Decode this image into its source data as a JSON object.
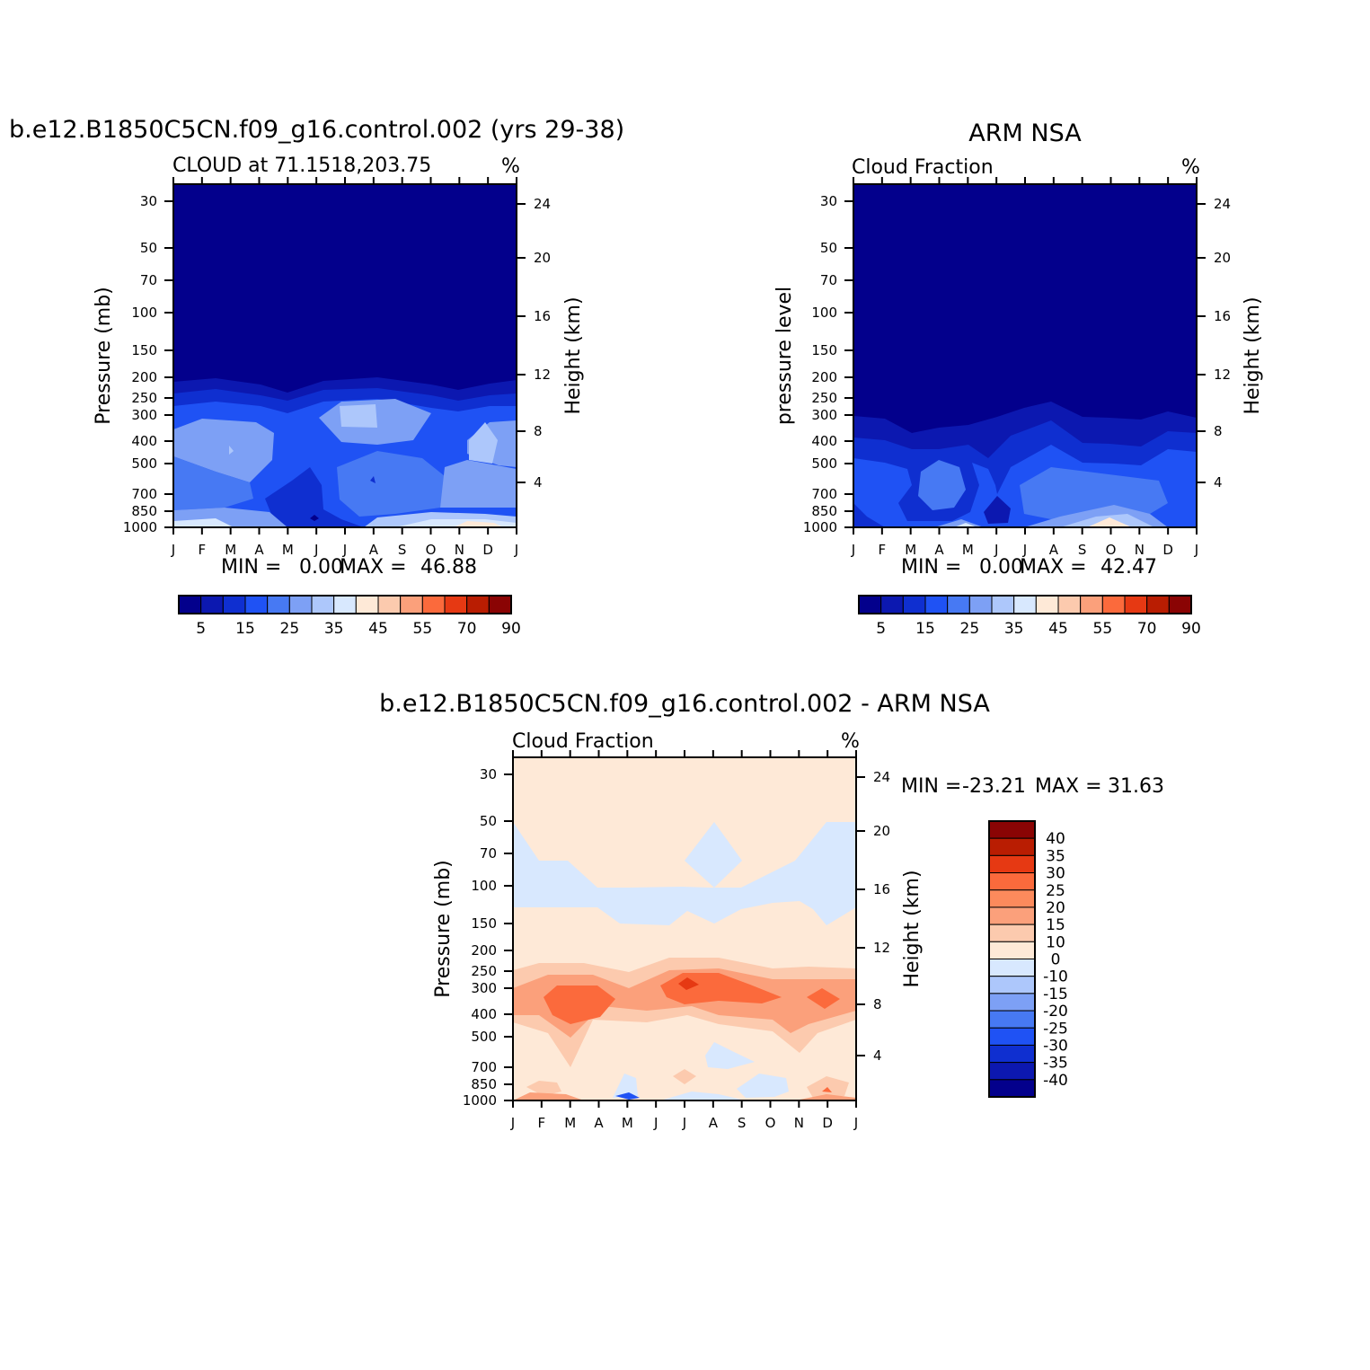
{
  "chart_data": [
    {
      "type": "heatmap",
      "title": "b.e12.B1850C5CN.f09_g16.control.002 (yrs 29-38)",
      "subtitle_left": "CLOUD at 71.1518,203.75",
      "subtitle_right": "%",
      "ylabel": "Pressure (mb)",
      "y2label": "Height (km)",
      "x_ticks": [
        "J",
        "F",
        "M",
        "A",
        "M",
        "J",
        "J",
        "A",
        "S",
        "O",
        "N",
        "D",
        "J"
      ],
      "y_ticks": [
        "30",
        "50",
        "70",
        "100",
        "150",
        "200",
        "250",
        "300",
        "400",
        "500",
        "700",
        "850",
        "1000"
      ],
      "y2_ticks": [
        "24",
        "20",
        "16",
        "12",
        "8",
        "4"
      ],
      "stats": {
        "min_label": "MIN =",
        "min": "0.00",
        "max_label": "MAX =",
        "max": "46.88"
      },
      "colorbar": {
        "colors": [
          "#03008c",
          "#0c18b0",
          "#0f2fd0",
          "#1f52f4",
          "#4779f3",
          "#7da0f5",
          "#adc7fb",
          "#d8e8fe",
          "#fee9d7",
          "#fccaae",
          "#fba07b",
          "#fb6a3c",
          "#e63913",
          "#b91d02",
          "#8a0404"
        ],
        "labels": [
          "5",
          "15",
          "25",
          "35",
          "45",
          "55",
          "70",
          "90"
        ]
      }
    },
    {
      "type": "heatmap",
      "title": "ARM NSA",
      "subtitle_left": "Cloud Fraction",
      "subtitle_right": "%",
      "ylabel": "pressure level",
      "y2label": "Height (km)",
      "x_ticks": [
        "J",
        "F",
        "M",
        "A",
        "M",
        "J",
        "J",
        "A",
        "S",
        "O",
        "N",
        "D",
        "J"
      ],
      "y_ticks": [
        "30",
        "50",
        "70",
        "100",
        "150",
        "200",
        "250",
        "300",
        "400",
        "500",
        "700",
        "850",
        "1000"
      ],
      "y2_ticks": [
        "24",
        "20",
        "16",
        "12",
        "8",
        "4"
      ],
      "stats": {
        "min_label": "MIN =",
        "min": "0.00",
        "max_label": "MAX =",
        "max": "42.47"
      },
      "colorbar": {
        "colors": [
          "#03008c",
          "#0c18b0",
          "#0f2fd0",
          "#1f52f4",
          "#4779f3",
          "#7da0f5",
          "#adc7fb",
          "#d8e8fe",
          "#fee9d7",
          "#fccaae",
          "#fba07b",
          "#fb6a3c",
          "#e63913",
          "#b91d02",
          "#8a0404"
        ],
        "labels": [
          "5",
          "15",
          "25",
          "35",
          "45",
          "55",
          "70",
          "90"
        ]
      }
    },
    {
      "type": "heatmap",
      "title": "b.e12.B1850C5CN.f09_g16.control.002 - ARM NSA",
      "subtitle_left": "Cloud Fraction",
      "subtitle_right": "%",
      "ylabel": "Pressure (mb)",
      "y2label": "Height (km)",
      "x_ticks": [
        "J",
        "F",
        "M",
        "A",
        "M",
        "J",
        "J",
        "A",
        "S",
        "O",
        "N",
        "D",
        "J"
      ],
      "y_ticks": [
        "30",
        "50",
        "70",
        "100",
        "150",
        "200",
        "250",
        "300",
        "400",
        "500",
        "700",
        "850",
        "1000"
      ],
      "y2_ticks": [
        "24",
        "20",
        "16",
        "12",
        "8",
        "4"
      ],
      "stats": {
        "min_label": "MIN =",
        "min": "-23.21",
        "max_label": "MAX =",
        "max": "31.63"
      },
      "colorbar": {
        "colors_top_to_bottom": [
          "#8a0404",
          "#b91d02",
          "#e63913",
          "#fb6a3c",
          "#fc8a5c",
          "#fba07b",
          "#fccaae",
          "#fee9d7",
          "#d8e8fe",
          "#adc7fb",
          "#7da0f5",
          "#4779f3",
          "#1f52f4",
          "#0f2fd0",
          "#0c18b0",
          "#03008c"
        ],
        "labels_top_to_bottom": [
          "40",
          "35",
          "30",
          "25",
          "20",
          "15",
          "10",
          "0",
          "-10",
          "-15",
          "-20",
          "-25",
          "-30",
          "-35",
          "-40"
        ]
      }
    }
  ]
}
